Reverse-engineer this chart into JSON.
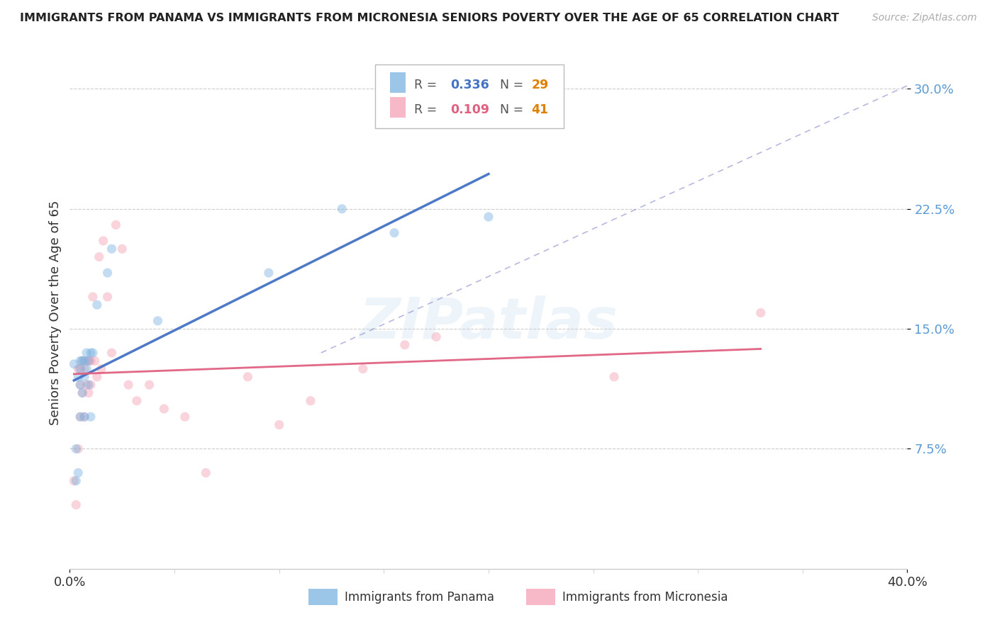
{
  "title": "IMMIGRANTS FROM PANAMA VS IMMIGRANTS FROM MICRONESIA SENIORS POVERTY OVER THE AGE OF 65 CORRELATION CHART",
  "source": "Source: ZipAtlas.com",
  "ylabel": "Seniors Poverty Over the Age of 65",
  "xlim": [
    0.0,
    0.4
  ],
  "ylim": [
    0.0,
    0.32
  ],
  "yticks": [
    0.075,
    0.15,
    0.225,
    0.3
  ],
  "ytick_labels": [
    "7.5%",
    "15.0%",
    "22.5%",
    "30.0%"
  ],
  "xticks": [
    0.0,
    0.4
  ],
  "xtick_labels": [
    "0.0%",
    "40.0%"
  ],
  "grid_color": "#cccccc",
  "background_color": "#ffffff",
  "panama_color": "#7ab3e0",
  "micronesia_color": "#f5a0b5",
  "panama_label": "Immigrants from Panama",
  "micronesia_label": "Immigrants from Micronesia",
  "ytick_color": "#5b9bd5",
  "watermark": "ZIPatlas",
  "marker_size": 90,
  "marker_alpha": 0.45,
  "panama_line_color": "#4472c4",
  "micronesia_line_color": "#e06080",
  "diag_color": "#aaaaee",
  "panama_x": [
    0.002,
    0.003,
    0.003,
    0.004,
    0.004,
    0.005,
    0.005,
    0.005,
    0.005,
    0.006,
    0.006,
    0.007,
    0.007,
    0.007,
    0.008,
    0.008,
    0.009,
    0.009,
    0.01,
    0.01,
    0.011,
    0.013,
    0.018,
    0.02,
    0.042,
    0.095,
    0.13,
    0.155,
    0.2
  ],
  "panama_y": [
    0.128,
    0.075,
    0.055,
    0.12,
    0.06,
    0.13,
    0.125,
    0.115,
    0.095,
    0.13,
    0.11,
    0.13,
    0.12,
    0.095,
    0.135,
    0.125,
    0.13,
    0.115,
    0.135,
    0.095,
    0.135,
    0.165,
    0.185,
    0.2,
    0.155,
    0.185,
    0.225,
    0.21,
    0.22
  ],
  "micronesia_x": [
    0.002,
    0.003,
    0.004,
    0.004,
    0.005,
    0.005,
    0.005,
    0.006,
    0.006,
    0.007,
    0.007,
    0.008,
    0.008,
    0.009,
    0.009,
    0.01,
    0.01,
    0.011,
    0.012,
    0.013,
    0.014,
    0.015,
    0.016,
    0.018,
    0.02,
    0.022,
    0.025,
    0.028,
    0.032,
    0.038,
    0.045,
    0.055,
    0.065,
    0.085,
    0.1,
    0.115,
    0.14,
    0.16,
    0.175,
    0.26,
    0.33
  ],
  "micronesia_y": [
    0.055,
    0.04,
    0.125,
    0.075,
    0.125,
    0.115,
    0.095,
    0.13,
    0.11,
    0.125,
    0.095,
    0.13,
    0.115,
    0.13,
    0.11,
    0.13,
    0.115,
    0.17,
    0.13,
    0.12,
    0.195,
    0.125,
    0.205,
    0.17,
    0.135,
    0.215,
    0.2,
    0.115,
    0.105,
    0.115,
    0.1,
    0.095,
    0.06,
    0.12,
    0.09,
    0.105,
    0.125,
    0.14,
    0.145,
    0.12,
    0.16
  ]
}
